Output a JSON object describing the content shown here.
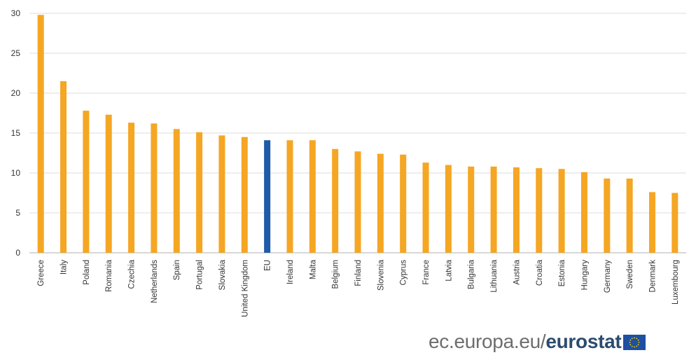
{
  "chart_data": {
    "type": "bar",
    "categories": [
      "Greece",
      "Italy",
      "Poland",
      "Romania",
      "Czechia",
      "Netherlands",
      "Spain",
      "Portugal",
      "Slovakia",
      "United Kingdom",
      "EU",
      "Ireland",
      "Malta",
      "Belgium",
      "Finland",
      "Slovenia",
      "Cyprus",
      "France",
      "Latvia",
      "Bulgaria",
      "Lithuania",
      "Austria",
      "Croatia",
      "Estonia",
      "Hungary",
      "Germany",
      "Sweden",
      "Denmark",
      "Luxembourg"
    ],
    "values": [
      29.8,
      21.5,
      17.8,
      17.3,
      16.3,
      16.2,
      15.5,
      15.1,
      14.7,
      14.5,
      14.1,
      14.1,
      14.1,
      13.0,
      12.7,
      12.4,
      12.3,
      11.3,
      11.0,
      10.8,
      10.8,
      10.7,
      10.6,
      10.5,
      10.1,
      9.3,
      9.3,
      7.6,
      7.5
    ],
    "highlight": "EU",
    "ylim": [
      0,
      30
    ],
    "yticks": [
      0,
      5,
      10,
      15,
      20,
      25,
      30
    ],
    "grid": true,
    "legend": "none",
    "title": "",
    "xlabel": "",
    "ylabel": ""
  },
  "colors": {
    "bar": "#f5a623",
    "highlight_bar": "#1f5ba8",
    "flag_blue": "#1f4fa0",
    "flag_star": "#ffd700"
  },
  "source": {
    "url_text": "ec.europa.eu/",
    "brand_text": "eurostat",
    "logo_icon": "eu-flag-icon"
  }
}
